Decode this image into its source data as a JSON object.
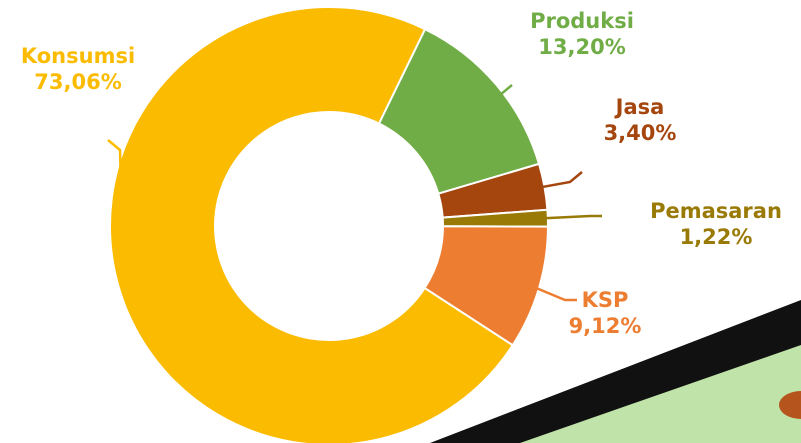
{
  "chart_data": {
    "type": "pie",
    "categories": [
      "Produksi",
      "Jasa",
      "Pemasaran",
      "KSP",
      "Konsumsi"
    ],
    "values": [
      13.2,
      3.4,
      1.22,
      9.12,
      73.06
    ],
    "value_labels": [
      "13,20%",
      "3,40%",
      "1,22%",
      "9,12%",
      "73,06%"
    ],
    "colors": [
      "#70ad47",
      "#a5460f",
      "#9a7a06",
      "#ed7d31",
      "#fbbb00"
    ]
  }
}
